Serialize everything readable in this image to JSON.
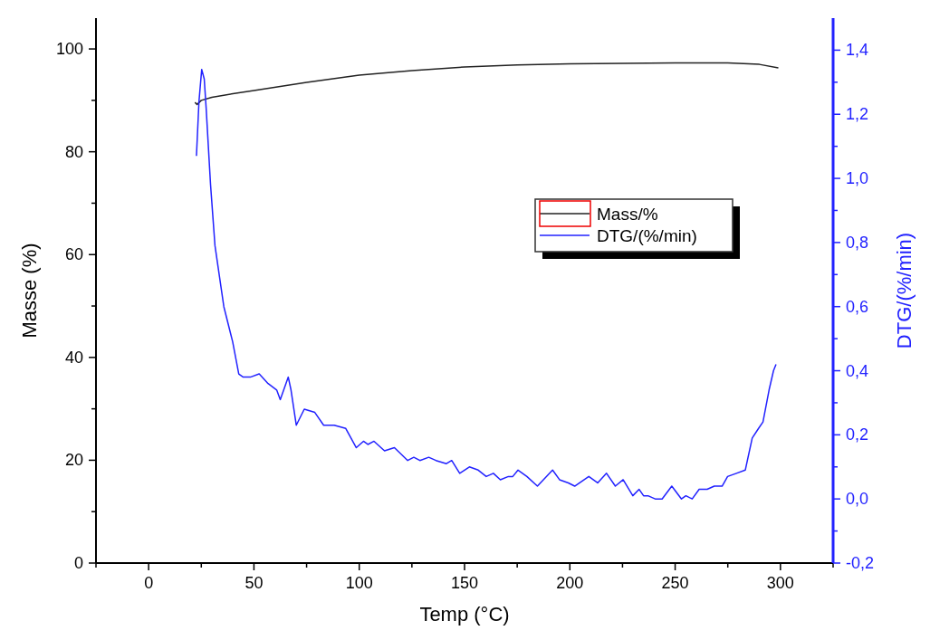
{
  "chart_data": {
    "type": "line",
    "xlabel": "Temp (°C)",
    "ylabel": "Masse (%)",
    "y2label": "DTG/(%/min)",
    "xlim": [
      -25,
      325
    ],
    "xticks": [
      {
        "value": -25,
        "label": null
      },
      0,
      {
        "value": 25,
        "label": null
      },
      50,
      {
        "value": 75,
        "label": null
      },
      100,
      {
        "value": 125,
        "label": null
      },
      150,
      {
        "value": 175,
        "label": null
      },
      200,
      {
        "value": 225,
        "label": null
      },
      250,
      {
        "value": 275,
        "label": null
      },
      300,
      {
        "value": 325,
        "label": null
      }
    ],
    "ylim": [
      0,
      106
    ],
    "yticks": [
      0,
      {
        "value": 10,
        "label": null
      },
      20,
      {
        "value": 30,
        "label": null
      },
      40,
      {
        "value": 50,
        "label": null
      },
      60,
      {
        "value": 70,
        "label": null
      },
      80,
      {
        "value": 90,
        "label": null
      },
      100
    ],
    "y2lim": [
      -0.2,
      1.5
    ],
    "y2ticks": [
      {
        "value": -0.2,
        "label": "-0,2"
      },
      {
        "value": -0.1,
        "label": null
      },
      {
        "value": 0,
        "label": "0,0"
      },
      {
        "value": 0.1,
        "label": null
      },
      {
        "value": 0.2,
        "label": "0,2"
      },
      {
        "value": 0.3,
        "label": null
      },
      {
        "value": 0.4,
        "label": "0,4"
      },
      {
        "value": 0.5,
        "label": null
      },
      {
        "value": 0.6,
        "label": "0,6"
      },
      {
        "value": 0.7,
        "label": null
      },
      {
        "value": 0.8,
        "label": "0,8"
      },
      {
        "value": 0.9,
        "label": null
      },
      {
        "value": 1.0,
        "label": "1,0"
      },
      {
        "value": 1.1,
        "label": null
      },
      {
        "value": 1.2,
        "label": "1,2"
      },
      {
        "value": 1.3,
        "label": null
      },
      {
        "value": 1.4,
        "label": "1,4"
      }
    ],
    "legend": "top right",
    "grid": false,
    "series": [
      {
        "name": "Mass/%",
        "color": "#222222",
        "x": [
          22,
          23,
          25,
          30,
          40,
          50,
          75,
          100,
          125,
          150,
          175,
          200,
          225,
          250,
          275,
          290,
          299
        ],
        "values": [
          89.6,
          89.2,
          90,
          90.6,
          91.3,
          91.9,
          93.5,
          94.9,
          95.8,
          96.5,
          96.9,
          97.1,
          97.2,
          97.3,
          97.3,
          97,
          96.3
        ]
      },
      {
        "name": "DTG/(%/min)",
        "color": "#2222ff",
        "axis": "y2",
        "x": [
          22.7,
          23.9,
          25.2,
          26.4,
          27.3,
          29.4,
          31.5,
          35.7,
          39.9,
          42.8,
          44.9,
          48.3,
          52.5,
          56.7,
          60.8,
          62.5,
          66.3,
          67.6,
          70.1,
          73.9,
          78.9,
          83.1,
          88.1,
          93.6,
          98.6,
          102.0,
          104.1,
          107.0,
          112.0,
          116.7,
          123.0,
          125.9,
          128.8,
          133.0,
          136.4,
          141.4,
          143.9,
          147.7,
          152.3,
          156.5,
          160.3,
          163.7,
          167.0,
          170.8,
          172.9,
          175.4,
          179.6,
          184.6,
          191.8,
          195.1,
          199.3,
          202.3,
          209.0,
          213.2,
          217.4,
          221.6,
          225.3,
          229.9,
          232.9,
          235.0,
          237.1,
          240.5,
          243.8,
          248.4,
          253.0,
          255.1,
          258.1,
          261.4,
          265.2,
          268.6,
          272.3,
          274.9,
          279.1,
          283.3,
          286.6,
          289.6,
          291.7,
          294.6,
          296.7,
          297.9
        ],
        "values": [
          1.07,
          1.24,
          1.34,
          1.31,
          1.22,
          0.98,
          0.79,
          0.6,
          0.49,
          0.39,
          0.38,
          0.38,
          0.39,
          0.36,
          0.34,
          0.31,
          0.38,
          0.34,
          0.23,
          0.28,
          0.27,
          0.23,
          0.23,
          0.22,
          0.16,
          0.18,
          0.17,
          0.18,
          0.15,
          0.16,
          0.12,
          0.13,
          0.12,
          0.13,
          0.12,
          0.11,
          0.12,
          0.08,
          0.1,
          0.09,
          0.07,
          0.08,
          0.06,
          0.07,
          0.07,
          0.09,
          0.07,
          0.04,
          0.09,
          0.06,
          0.05,
          0.04,
          0.07,
          0.05,
          0.08,
          0.04,
          0.06,
          0.01,
          0.03,
          0.01,
          0.01,
          0,
          0,
          0.04,
          0,
          0.01,
          0,
          0.03,
          0.03,
          0.04,
          0.04,
          0.07,
          0.08,
          0.09,
          0.19,
          0.22,
          0.24,
          0.34,
          0.4,
          0.42
        ]
      }
    ]
  }
}
